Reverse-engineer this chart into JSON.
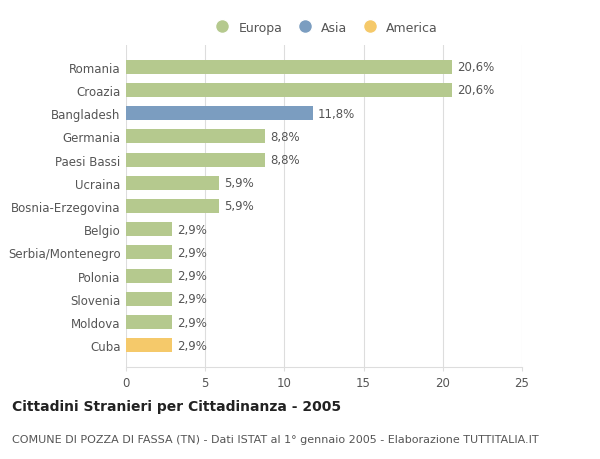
{
  "categories": [
    "Romania",
    "Croazia",
    "Bangladesh",
    "Germania",
    "Paesi Bassi",
    "Ucraina",
    "Bosnia-Erzegovina",
    "Belgio",
    "Serbia/Montenegro",
    "Polonia",
    "Slovenia",
    "Moldova",
    "Cuba"
  ],
  "values": [
    20.6,
    20.6,
    11.8,
    8.8,
    8.8,
    5.9,
    5.9,
    2.9,
    2.9,
    2.9,
    2.9,
    2.9,
    2.9
  ],
  "labels": [
    "20,6%",
    "20,6%",
    "11,8%",
    "8,8%",
    "8,8%",
    "5,9%",
    "5,9%",
    "2,9%",
    "2,9%",
    "2,9%",
    "2,9%",
    "2,9%",
    "2,9%"
  ],
  "continents": [
    "Europa",
    "Europa",
    "Asia",
    "Europa",
    "Europa",
    "Europa",
    "Europa",
    "Europa",
    "Europa",
    "Europa",
    "Europa",
    "Europa",
    "America"
  ],
  "colors": {
    "Europa": "#b5c98e",
    "Asia": "#7b9dc0",
    "America": "#f5c96a"
  },
  "legend": [
    {
      "label": "Europa",
      "color": "#b5c98e"
    },
    {
      "label": "Asia",
      "color": "#7b9dc0"
    },
    {
      "label": "America",
      "color": "#f5c96a"
    }
  ],
  "xlim": [
    0,
    25
  ],
  "xticks": [
    0,
    5,
    10,
    15,
    20,
    25
  ],
  "title": "Cittadini Stranieri per Cittadinanza - 2005",
  "subtitle": "COMUNE DI POZZA DI FASSA (TN) - Dati ISTAT al 1° gennaio 2005 - Elaborazione TUTTITALIA.IT",
  "background_color": "#ffffff",
  "grid_color": "#dddddd",
  "bar_height": 0.6,
  "label_fontsize": 8.5,
  "title_fontsize": 10,
  "subtitle_fontsize": 8,
  "ytick_fontsize": 8.5,
  "xtick_fontsize": 8.5,
  "legend_fontsize": 9,
  "legend_marker_size": 10
}
